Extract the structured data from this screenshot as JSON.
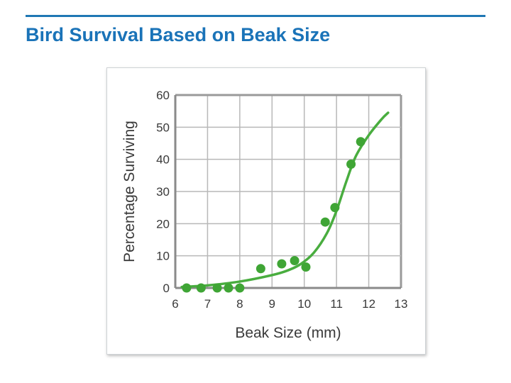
{
  "slide": {
    "title": "Bird Survival Based on Beak Size",
    "accent_color": "#1a73b8"
  },
  "chart_data": {
    "type": "scatter",
    "title": "",
    "xlabel": "Beak Size (mm)",
    "ylabel": "Percentage Surviving",
    "xlim": [
      6,
      13
    ],
    "ylim": [
      0,
      60
    ],
    "x_ticks": [
      "6",
      "7",
      "8",
      "9",
      "10",
      "11",
      "12",
      "13"
    ],
    "y_ticks": [
      "0",
      "10",
      "20",
      "30",
      "40",
      "50",
      "60"
    ],
    "grid": true,
    "point_color": "#3fa535",
    "line_color": "#49ad3f",
    "points": [
      {
        "x": 6.35,
        "y": 0
      },
      {
        "x": 6.8,
        "y": 0
      },
      {
        "x": 7.3,
        "y": 0
      },
      {
        "x": 7.65,
        "y": 0
      },
      {
        "x": 8.0,
        "y": 0
      },
      {
        "x": 8.65,
        "y": 6
      },
      {
        "x": 9.3,
        "y": 7.5
      },
      {
        "x": 9.7,
        "y": 8.5
      },
      {
        "x": 10.05,
        "y": 6.5
      },
      {
        "x": 10.65,
        "y": 20.5
      },
      {
        "x": 10.95,
        "y": 25
      },
      {
        "x": 11.45,
        "y": 38.5
      },
      {
        "x": 11.75,
        "y": 45.5
      }
    ],
    "trend_line": [
      {
        "x": 6.2,
        "y": 0.3
      },
      {
        "x": 7.0,
        "y": 0.8
      },
      {
        "x": 8.0,
        "y": 2.0
      },
      {
        "x": 9.0,
        "y": 4.0
      },
      {
        "x": 9.5,
        "y": 5.5
      },
      {
        "x": 9.9,
        "y": 7.5
      },
      {
        "x": 10.3,
        "y": 11.0
      },
      {
        "x": 10.7,
        "y": 17.0
      },
      {
        "x": 11.0,
        "y": 24.0
      },
      {
        "x": 11.3,
        "y": 33.0
      },
      {
        "x": 11.6,
        "y": 41.0
      },
      {
        "x": 12.0,
        "y": 47.5
      },
      {
        "x": 12.4,
        "y": 52.5
      },
      {
        "x": 12.6,
        "y": 54.5
      }
    ]
  }
}
